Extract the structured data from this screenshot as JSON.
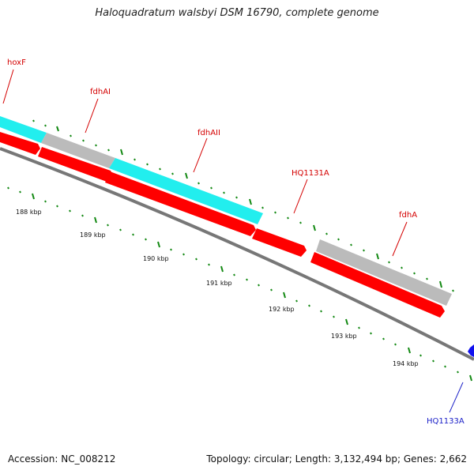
{
  "title": "Haloquadratum walsbyi DSM 16790, complete genome",
  "footer": {
    "accession": "Accession: NC_008212",
    "summary": "Topology: circular; Length: 3,132,494 bp; Genes: 2,662"
  },
  "colors": {
    "backbone": "#777777",
    "cds": "#ff0000",
    "rna_cyan": "#22eeee",
    "gene_gray": "#bbbbbb",
    "tick": "#118811",
    "label_red": "#d40000",
    "label_blue": "#1d22c8",
    "reverse_feature": "#1010ee"
  },
  "gene_labels": [
    {
      "name": "hoxF",
      "color": "red"
    },
    {
      "name": "fdhAI",
      "color": "red"
    },
    {
      "name": "fdhAII",
      "color": "red"
    },
    {
      "name": "HQ1131A",
      "color": "red"
    },
    {
      "name": "fdhA",
      "color": "red"
    },
    {
      "name": "HQ1133A",
      "color": "blue"
    }
  ],
  "scale_labels": [
    "188 kbp",
    "189 kbp",
    "190 kbp",
    "191 kbp",
    "192 kbp",
    "193 kbp",
    "194 kbp"
  ]
}
